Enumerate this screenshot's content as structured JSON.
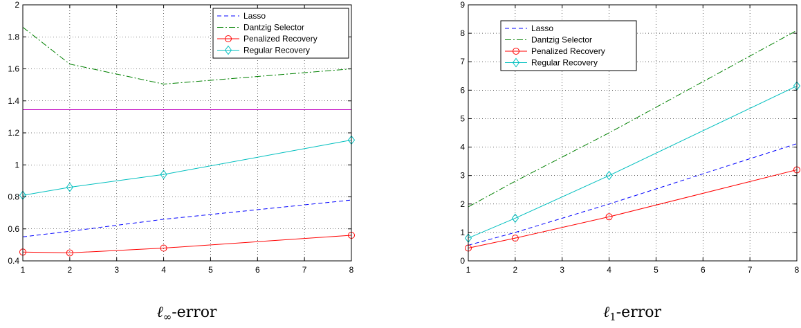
{
  "chart_data": [
    {
      "type": "line",
      "caption": {
        "symbol": "ℓ",
        "sub": "∞",
        "suffix": "-error"
      },
      "x": [
        1,
        2,
        4,
        8
      ],
      "xlim": [
        1,
        8
      ],
      "ylim": [
        0.4,
        2
      ],
      "xticks": [
        "1",
        "2",
        "3",
        "4",
        "5",
        "6",
        "7",
        "8"
      ],
      "yticks": [
        "0.4",
        "0.6",
        "0.8",
        "1",
        "1.2",
        "1.4",
        "1.6",
        "1.8",
        "2"
      ],
      "grid": true,
      "legend_position": "top-right",
      "series": [
        {
          "name": "Lasso",
          "values": [
            0.55,
            0.585,
            0.66,
            0.78
          ],
          "color": "#0000ff",
          "dash": "dashed",
          "marker": "none"
        },
        {
          "name": "Dantzig Selector",
          "values": [
            1.86,
            1.63,
            1.505,
            1.6
          ],
          "color": "#008000",
          "dash": "dashdot",
          "marker": "none"
        },
        {
          "name": "Penalized Recovery",
          "values": [
            0.455,
            0.45,
            0.48,
            0.56
          ],
          "color": "#ff0000",
          "dash": "solid",
          "marker": "circle"
        },
        {
          "name": "Regular Recovery",
          "values": [
            0.81,
            0.86,
            0.94,
            1.155
          ],
          "color": "#00bfbf",
          "dash": "solid",
          "marker": "diamond"
        }
      ],
      "reference_line": {
        "y": 1.345,
        "color": "#bf00bf"
      }
    },
    {
      "type": "line",
      "caption": {
        "symbol": "ℓ",
        "sub": "1",
        "suffix": "-error"
      },
      "x": [
        1,
        2,
        4,
        8
      ],
      "xlim": [
        1,
        8
      ],
      "ylim": [
        0,
        9
      ],
      "xticks": [
        "1",
        "2",
        "3",
        "4",
        "5",
        "6",
        "7",
        "8"
      ],
      "yticks": [
        "0",
        "1",
        "2",
        "3",
        "4",
        "5",
        "6",
        "7",
        "8",
        "9"
      ],
      "grid": true,
      "legend_position": "top-left",
      "series": [
        {
          "name": "Lasso",
          "values": [
            0.55,
            1.0,
            2.0,
            4.12
          ],
          "color": "#0000ff",
          "dash": "dashed",
          "marker": "none"
        },
        {
          "name": "Dantzig Selector",
          "values": [
            1.9,
            2.8,
            4.5,
            8.1
          ],
          "color": "#008000",
          "dash": "dashdot",
          "marker": "none"
        },
        {
          "name": "Penalized Recovery",
          "values": [
            0.45,
            0.8,
            1.55,
            3.2
          ],
          "color": "#ff0000",
          "dash": "solid",
          "marker": "circle"
        },
        {
          "name": "Regular Recovery",
          "values": [
            0.8,
            1.5,
            3.0,
            6.15
          ],
          "color": "#00bfbf",
          "dash": "solid",
          "marker": "diamond"
        }
      ]
    }
  ]
}
